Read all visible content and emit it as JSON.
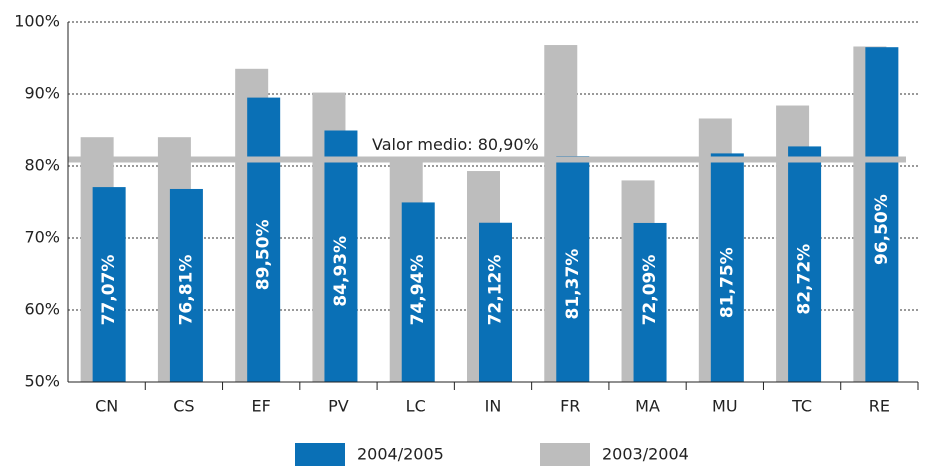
{
  "chart_data": {
    "type": "bar",
    "categories": [
      "CN",
      "CS",
      "EF",
      "PV",
      "LC",
      "IN",
      "FR",
      "MA",
      "MU",
      "TC",
      "RE"
    ],
    "series": [
      {
        "name": "2004/2005",
        "color": "#0a70b6",
        "values": [
          77.07,
          76.81,
          89.5,
          84.93,
          74.94,
          72.12,
          81.37,
          72.09,
          81.75,
          82.72,
          96.5
        ],
        "value_labels": [
          "77,07%",
          "76,81%",
          "89,50%",
          "84,93%",
          "74,94%",
          "72,12%",
          "81,37%",
          "72,09%",
          "81,75%",
          "82,72%",
          "96,50%"
        ]
      },
      {
        "name": "2003/2004",
        "color": "#bdbdbd",
        "values": [
          84,
          84,
          93.5,
          90.2,
          81,
          79.3,
          96.8,
          78,
          86.6,
          88.4,
          96.6
        ]
      }
    ],
    "average": {
      "value": 80.9,
      "label": "Valor medio: 80,90%"
    },
    "ylim": [
      50,
      100
    ],
    "yticks": [
      {
        "value": 50,
        "label": "50%"
      },
      {
        "value": 60,
        "label": "60%"
      },
      {
        "value": 70,
        "label": "70%"
      },
      {
        "value": 80,
        "label": "80%"
      },
      {
        "value": 90,
        "label": "90%"
      },
      {
        "value": 100,
        "label": "100%"
      }
    ],
    "grid": true
  }
}
